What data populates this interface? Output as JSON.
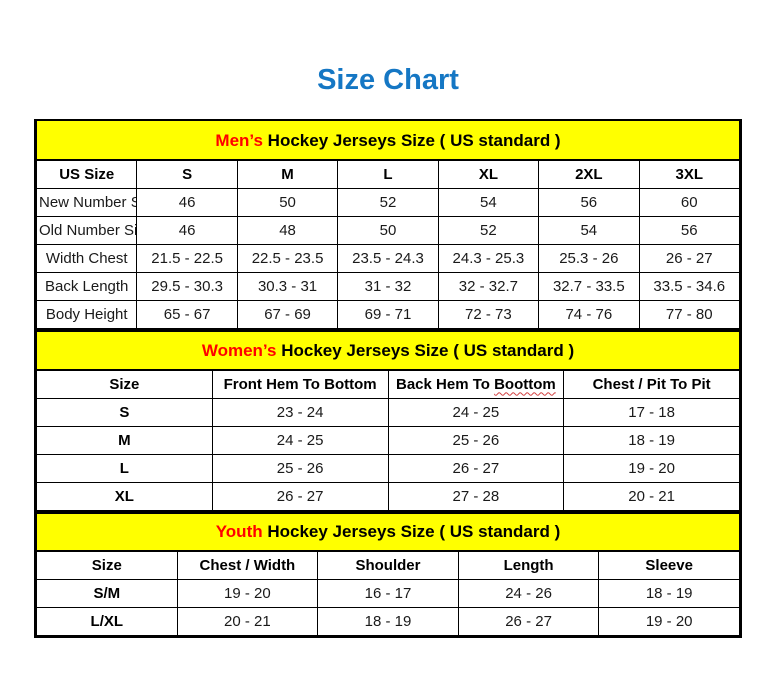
{
  "page": {
    "title": "Size Chart"
  },
  "colors": {
    "title_blue": "#1577c4",
    "banner_yellow": "#ffff00",
    "accent_red": "#ff0000",
    "border_black": "#000000"
  },
  "men": {
    "banner": {
      "highlight": "Men’s",
      "rest": " Hockey Jerseys Size ( US standard )"
    },
    "headers": [
      "US Size",
      "S",
      "M",
      "L",
      "XL",
      "2XL",
      "3XL"
    ],
    "rows": [
      {
        "label": "New Number Size",
        "values": [
          "46",
          "50",
          "52",
          "54",
          "56",
          "60"
        ]
      },
      {
        "label": "Old Number Size",
        "values": [
          "46",
          "48",
          "50",
          "52",
          "54",
          "56"
        ]
      },
      {
        "label": "Width Chest",
        "values": [
          "21.5 - 22.5",
          "22.5 - 23.5",
          "23.5 - 24.3",
          "24.3 - 25.3",
          "25.3 - 26",
          "26 - 27"
        ]
      },
      {
        "label": "Back Length",
        "values": [
          "29.5 - 30.3",
          "30.3 - 31",
          "31 - 32",
          "32 - 32.7",
          "32.7 - 33.5",
          "33.5 - 34.6"
        ]
      },
      {
        "label": "Body Height",
        "values": [
          "65 - 67",
          "67 - 69",
          "69 - 71",
          "72 - 73",
          "74 - 76",
          "77 - 80"
        ]
      }
    ]
  },
  "women": {
    "banner": {
      "highlight": "Women’s",
      "rest": " Hockey Jerseys Size ( US standard )"
    },
    "headers": {
      "size": "Size",
      "front": "Front Hem To Bottom",
      "back_prefix": "Back Hem To ",
      "back_misspelled": "Boottom",
      "chest": "Chest / Pit To Pit"
    },
    "rows": [
      {
        "label": "S",
        "values": [
          "23 - 24",
          "24 - 25",
          "17 - 18"
        ]
      },
      {
        "label": "M",
        "values": [
          "24 - 25",
          "25 - 26",
          "18 - 19"
        ]
      },
      {
        "label": "L",
        "values": [
          "25 - 26",
          "26 - 27",
          "19 - 20"
        ]
      },
      {
        "label": "XL",
        "values": [
          "26 - 27",
          "27 - 28",
          "20 - 21"
        ]
      }
    ]
  },
  "youth": {
    "banner": {
      "highlight": "Youth",
      "rest": " Hockey Jerseys Size ( US standard )"
    },
    "headers": [
      "Size",
      "Chest / Width",
      "Shoulder",
      "Length",
      "Sleeve"
    ],
    "rows": [
      {
        "label": "S/M",
        "values": [
          "19 - 20",
          "16 - 17",
          "24 - 26",
          "18 - 19"
        ]
      },
      {
        "label": "L/XL",
        "values": [
          "20 - 21",
          "18 - 19",
          "26 - 27",
          "19 - 20"
        ]
      }
    ]
  }
}
